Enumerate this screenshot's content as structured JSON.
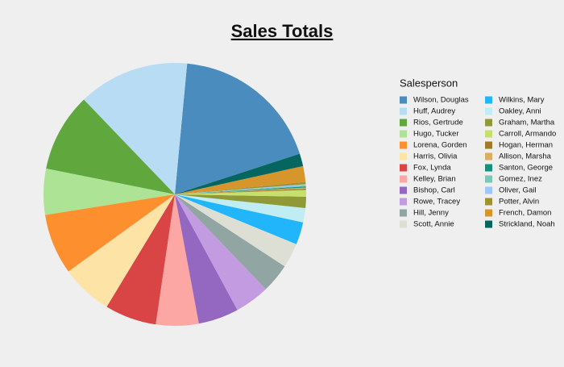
{
  "chart_data": {
    "type": "pie",
    "title": "Sales Totals",
    "legend_title": "Salesperson",
    "legend": "right",
    "categories": [
      "Wilson, Douglas",
      "Huff, Audrey",
      "Rios, Gertrude",
      "Hugo, Tucker",
      "Lorena, Gorden",
      "Harris, Olivia",
      "Fox, Lynda",
      "Kelley, Brian",
      "Bishop, Carl",
      "Rowe, Tracey",
      "Hill, Jenny",
      "Scott, Annie",
      "Wilkins, Mary",
      "Oakley, Anni",
      "Graham, Martha",
      "Carroll, Armando",
      "Hogan, Herman",
      "Allison, Marsha",
      "Santon, George",
      "Gomez, Inez",
      "Oliver, Gail",
      "Potter, Alvin",
      "French, Damon",
      "Strickland, Noah"
    ],
    "values": [
      67,
      49.5,
      35,
      20.5,
      27,
      23,
      23,
      19,
      18,
      15.5,
      13,
      11,
      10,
      6.4,
      5,
      3,
      0.5,
      0.5,
      0.5,
      0.5,
      0.5,
      1,
      7,
      5.6
    ],
    "colors": [
      "#4a8cbd",
      "#b9dcf5",
      "#60a83e",
      "#ade394",
      "#fd8f2e",
      "#fde3a6",
      "#d84544",
      "#fda7a5",
      "#9468c1",
      "#c39be0",
      "#91a5a3",
      "#dedfd4",
      "#21b5fb",
      "#c0ecf4",
      "#8f9a36",
      "#c7df6c",
      "#a17a28",
      "#d9ae60",
      "#14907b",
      "#7dc8b5",
      "#9cc7f6",
      "#a0922e",
      "#d6962c",
      "#05665f"
    ]
  }
}
